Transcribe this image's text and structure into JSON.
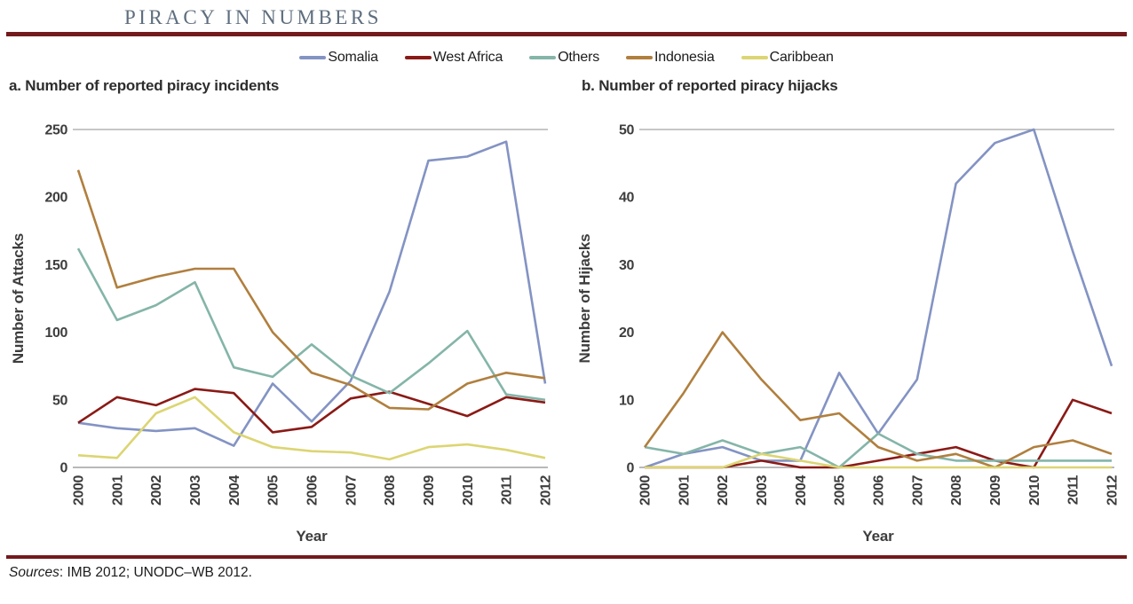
{
  "title": "PIRACY IN NUMBERS",
  "legend": [
    {
      "label": "Somalia",
      "color": "#8393c3"
    },
    {
      "label": "West Africa",
      "color": "#8a1a16"
    },
    {
      "label": "Others",
      "color": "#84b5a8"
    },
    {
      "label": "Indonesia",
      "color": "#b07f3e"
    },
    {
      "label": "Caribbean",
      "color": "#dcd573"
    }
  ],
  "colors": {
    "rule_accent": "#731a1c",
    "title_text": "#5e6e7e",
    "axis_text": "#3d3d3d"
  },
  "chart_data": [
    {
      "type": "line",
      "title": "a. Number of reported piracy incidents",
      "xlabel": "Year",
      "ylabel": "Number of Attacks",
      "ylim": [
        0,
        250
      ],
      "yticks": [
        0,
        50,
        100,
        150,
        200,
        250
      ],
      "grid": "top-line-only",
      "legend_position": "top-center-shared",
      "categories": [
        "2000",
        "2001",
        "2002",
        "2003",
        "2004",
        "2005",
        "2006",
        "2007",
        "2008",
        "2009",
        "2010",
        "2011",
        "2012"
      ],
      "series": [
        {
          "name": "Somalia",
          "color": "#8393c3",
          "values": [
            33,
            29,
            27,
            29,
            16,
            62,
            34,
            64,
            130,
            227,
            230,
            241,
            62
          ]
        },
        {
          "name": "West Africa",
          "color": "#8a1a16",
          "values": [
            33,
            52,
            46,
            58,
            55,
            26,
            30,
            51,
            56,
            47,
            38,
            52,
            48
          ]
        },
        {
          "name": "Others",
          "color": "#84b5a8",
          "values": [
            162,
            109,
            120,
            137,
            74,
            67,
            91,
            68,
            55,
            77,
            101,
            54,
            50
          ]
        },
        {
          "name": "Indonesia",
          "color": "#b07f3e",
          "values": [
            220,
            133,
            141,
            147,
            147,
            100,
            70,
            61,
            44,
            43,
            62,
            70,
            66
          ]
        },
        {
          "name": "Caribbean",
          "color": "#dcd573",
          "values": [
            9,
            7,
            40,
            52,
            26,
            15,
            12,
            11,
            6,
            15,
            17,
            13,
            7
          ]
        }
      ]
    },
    {
      "type": "line",
      "title": "b. Number of reported piracy hijacks",
      "xlabel": "Year",
      "ylabel": "Number of Hijacks",
      "ylim": [
        0,
        50
      ],
      "yticks": [
        0,
        10,
        20,
        30,
        40,
        50
      ],
      "grid": "top-line-only",
      "legend_position": "top-center-shared",
      "categories": [
        "2000",
        "2001",
        "2002",
        "2003",
        "2004",
        "2005",
        "2006",
        "2007",
        "2008",
        "2009",
        "2010",
        "2011",
        "2012"
      ],
      "series": [
        {
          "name": "Somalia",
          "color": "#8393c3",
          "values": [
            0,
            2,
            3,
            1,
            1,
            14,
            5,
            13,
            42,
            48,
            50,
            32,
            15
          ]
        },
        {
          "name": "West Africa",
          "color": "#8a1a16",
          "values": [
            0,
            0,
            0,
            1,
            0,
            0,
            1,
            2,
            3,
            1,
            0,
            10,
            8
          ]
        },
        {
          "name": "Others",
          "color": "#84b5a8",
          "values": [
            3,
            2,
            4,
            2,
            3,
            0,
            5,
            2,
            1,
            1,
            1,
            1,
            1
          ]
        },
        {
          "name": "Indonesia",
          "color": "#b07f3e",
          "values": [
            3,
            11,
            20,
            13,
            7,
            8,
            3,
            1,
            2,
            0,
            3,
            4,
            2
          ]
        },
        {
          "name": "Caribbean",
          "color": "#dcd573",
          "values": [
            0,
            0,
            0,
            2,
            1,
            0,
            0,
            0,
            0,
            0,
            0,
            0,
            0
          ]
        }
      ]
    }
  ],
  "sources": {
    "label": "Sources",
    "text": ": IMB 2012; UNODC–WB 2012."
  }
}
